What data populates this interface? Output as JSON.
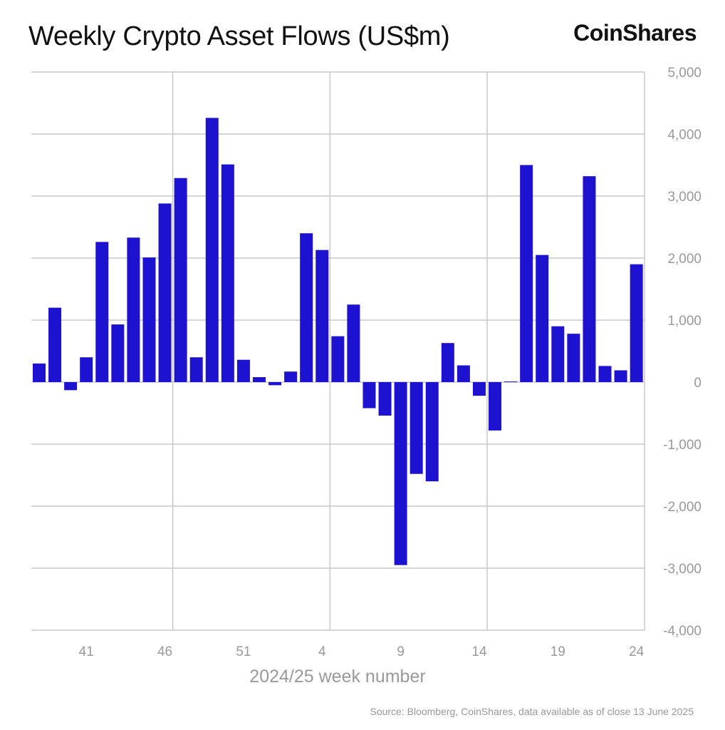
{
  "chart_data": {
    "type": "bar",
    "title": "Weekly Crypto Asset Flows (US$m)",
    "xlabel": "2024/25 week number",
    "ylabel": "",
    "ylim": [
      -4000,
      5000
    ],
    "yticks": [
      5000,
      4000,
      3000,
      2000,
      1000,
      0,
      -1000,
      -2000,
      -3000,
      -4000
    ],
    "ytick_labels": [
      "5,000",
      "4,000",
      "3,000",
      "2,000",
      "1,000",
      "0",
      "-1,000",
      "-2,000",
      "-3,000",
      "-4,000"
    ],
    "xtick_labels": [
      "41",
      "46",
      "51",
      "4",
      "9",
      "14",
      "19",
      "24"
    ],
    "grid": true,
    "bar_color": "#1c12d0",
    "categories": [
      "38",
      "39",
      "40",
      "41",
      "42",
      "43",
      "44",
      "45",
      "46",
      "47",
      "48",
      "49",
      "50",
      "51",
      "52",
      "1",
      "2",
      "3",
      "4",
      "5",
      "6",
      "7",
      "8",
      "9",
      "10",
      "11",
      "12",
      "13",
      "14",
      "15",
      "16",
      "17",
      "18",
      "19",
      "20",
      "21",
      "22",
      "23",
      "24"
    ],
    "values": [
      300,
      1200,
      -130,
      400,
      2260,
      930,
      2330,
      2010,
      2880,
      3290,
      400,
      4260,
      3510,
      360,
      80,
      -50,
      170,
      2400,
      2130,
      740,
      1250,
      -420,
      -540,
      -2950,
      -1480,
      -1600,
      630,
      270,
      -220,
      -780,
      10,
      3500,
      2050,
      900,
      780,
      3320,
      260,
      190,
      1900
    ]
  },
  "brand": "CoinShares",
  "source": "Source: Bloomberg, CoinShares, data available as of close 13 June 2025"
}
